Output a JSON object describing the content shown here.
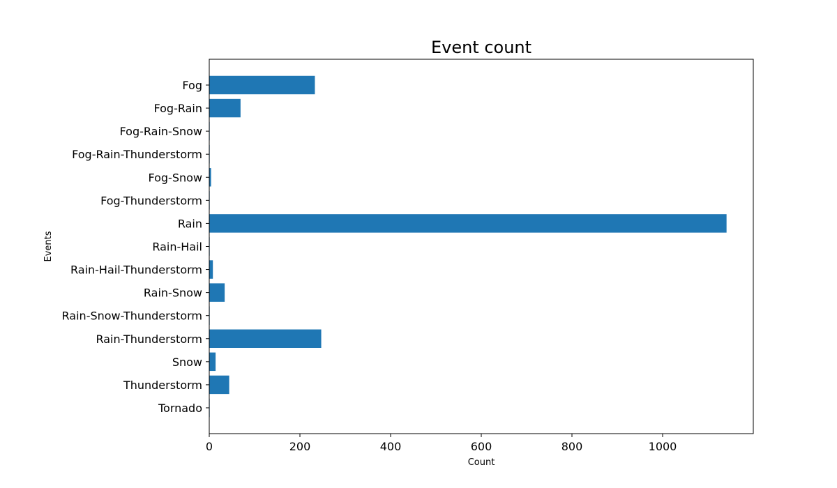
{
  "chart_data": {
    "type": "bar",
    "orientation": "horizontal",
    "title": "Event count",
    "xlabel": "Count",
    "ylabel": "Events",
    "categories": [
      "Fog",
      "Fog-Rain",
      "Fog-Rain-Snow",
      "Fog-Rain-Thunderstorm",
      "Fog-Snow",
      "Fog-Thunderstorm",
      "Rain",
      "Rain-Hail",
      "Rain-Hail-Thunderstorm",
      "Rain-Snow",
      "Rain-Snow-Thunderstorm",
      "Rain-Thunderstorm",
      "Snow",
      "Thunderstorm",
      "Tornado"
    ],
    "values": [
      233,
      69,
      1,
      1,
      4,
      1,
      1141,
      1,
      8,
      34,
      1,
      247,
      14,
      44,
      1
    ],
    "xlim": [
      0,
      1200
    ],
    "xticks": [
      0,
      200,
      400,
      600,
      800,
      1000
    ],
    "grid": false,
    "bar_color": "#1f77b4"
  }
}
